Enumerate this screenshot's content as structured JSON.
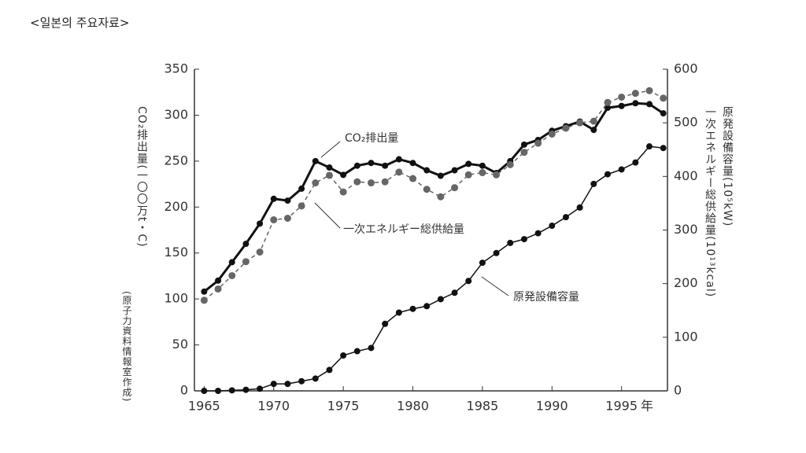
{
  "header": "<일본의 주요자료>",
  "chart_data": {
    "type": "line",
    "ylabel": "CO₂排出量(一〇〇万t・C)",
    "source": "(原子力資料情報室作成)",
    "y2labels": [
      "原発設備容量(10⁵kW)",
      "一次エネルギー総供給量(10¹³kcal)"
    ],
    "x_unit": "年",
    "x": [
      1965,
      1966,
      1967,
      1968,
      1969,
      1970,
      1971,
      1972,
      1973,
      1974,
      1975,
      1976,
      1977,
      1978,
      1979,
      1980,
      1981,
      1982,
      1983,
      1984,
      1985,
      1986,
      1987,
      1988,
      1989,
      1990,
      1991,
      1992,
      1993,
      1994,
      1995,
      1996,
      1997,
      1998
    ],
    "xlim": [
      1964.3,
      1998.3
    ],
    "xticks": [
      1965,
      1970,
      1975,
      1980,
      1985,
      1990,
      1995
    ],
    "ylim": [
      0,
      350
    ],
    "yticks": [
      0,
      50,
      100,
      150,
      200,
      250,
      300,
      350
    ],
    "y2lim": [
      0,
      600
    ],
    "y2ticks": [
      0,
      100,
      200,
      300,
      400,
      500,
      600
    ],
    "series": [
      {
        "name": "CO₂排出量",
        "color": "#111111",
        "line_style": "solid",
        "line_width": 3,
        "values": [
          108,
          120,
          140,
          160,
          182,
          209,
          207,
          220,
          250,
          243,
          235,
          245,
          248,
          245,
          252,
          248,
          240,
          234,
          240,
          247,
          245,
          237,
          250,
          268,
          273,
          283,
          288,
          293,
          284,
          308,
          310,
          313,
          312,
          302
        ]
      },
      {
        "name": "一次エネルギー総供給量",
        "color": "#666666",
        "line_style": "dashed",
        "line_width": 1.5,
        "axis": "y2",
        "values": [
          169,
          190,
          215,
          241,
          259,
          319,
          322,
          345,
          388,
          402,
          371,
          390,
          388,
          390,
          408,
          396,
          376,
          362,
          379,
          403,
          407,
          403,
          422,
          445,
          462,
          479,
          490,
          500,
          503,
          538,
          548,
          555,
          560,
          546
        ]
      },
      {
        "name": "原発設備容量",
        "color": "#111111",
        "line_style": "solid",
        "line_width": 1.5,
        "axis": "y2",
        "values": [
          0,
          0,
          1,
          2,
          4,
          13,
          13,
          18,
          23,
          39,
          66,
          74,
          80,
          125,
          146,
          153,
          158,
          171,
          183,
          205,
          239,
          257,
          276,
          283,
          294,
          308,
          324,
          342,
          386,
          404,
          413,
          426,
          456,
          453
        ]
      }
    ]
  }
}
